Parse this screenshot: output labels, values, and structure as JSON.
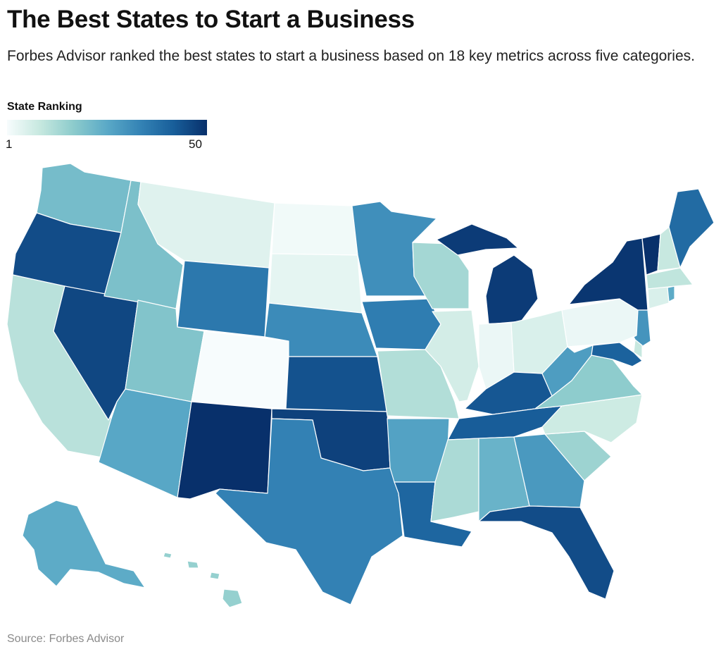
{
  "title": "The Best States to Start a Business",
  "subtitle": "Forbes Advisor ranked the best states to start a business based on 18 key metrics across five categories.",
  "legend": {
    "title": "State Ranking",
    "min_label": "1",
    "max_label": "50",
    "min_value": 1,
    "max_value": 50,
    "colors": [
      "#f7fcfd",
      "#c6e8df",
      "#8ccbcc",
      "#5aa9c7",
      "#3483b5",
      "#185e9a",
      "#08306b"
    ]
  },
  "source": "Source: Forbes Advisor",
  "map_data": {
    "type": "choropleth",
    "region": "United States",
    "states": [
      {
        "code": "WA",
        "rank": 21
      },
      {
        "code": "OR",
        "rank": 45
      },
      {
        "code": "CA",
        "rank": 11
      },
      {
        "code": "NV",
        "rank": 46
      },
      {
        "code": "ID",
        "rank": 20
      },
      {
        "code": "MT",
        "rank": 5
      },
      {
        "code": "WY",
        "rank": 36
      },
      {
        "code": "UT",
        "rank": 19
      },
      {
        "code": "AZ",
        "rank": 26
      },
      {
        "code": "CO",
        "rank": 1
      },
      {
        "code": "NM",
        "rank": 50
      },
      {
        "code": "ND",
        "rank": 2
      },
      {
        "code": "SD",
        "rank": 4
      },
      {
        "code": "NE",
        "rank": 32
      },
      {
        "code": "KS",
        "rank": 44
      },
      {
        "code": "OK",
        "rank": 47
      },
      {
        "code": "TX",
        "rank": 34
      },
      {
        "code": "MN",
        "rank": 31
      },
      {
        "code": "IA",
        "rank": 35
      },
      {
        "code": "MO",
        "rank": 12
      },
      {
        "code": "AR",
        "rank": 27
      },
      {
        "code": "LA",
        "rank": 40
      },
      {
        "code": "WI",
        "rank": 14
      },
      {
        "code": "IL",
        "rank": 7
      },
      {
        "code": "MI",
        "rank": 48
      },
      {
        "code": "IN",
        "rank": 3
      },
      {
        "code": "OH",
        "rank": 6
      },
      {
        "code": "KY",
        "rank": 43
      },
      {
        "code": "TN",
        "rank": 42
      },
      {
        "code": "MS",
        "rank": 13
      },
      {
        "code": "AL",
        "rank": 23
      },
      {
        "code": "GA",
        "rank": 29
      },
      {
        "code": "FL",
        "rank": 45
      },
      {
        "code": "SC",
        "rank": 15
      },
      {
        "code": "NC",
        "rank": 8
      },
      {
        "code": "VA",
        "rank": 17
      },
      {
        "code": "WV",
        "rank": 28
      },
      {
        "code": "PA",
        "rank": 3
      },
      {
        "code": "NY",
        "rank": 49
      },
      {
        "code": "VT",
        "rank": 50
      },
      {
        "code": "NH",
        "rank": 9
      },
      {
        "code": "ME",
        "rank": 39
      },
      {
        "code": "MA",
        "rank": 10
      },
      {
        "code": "CT",
        "rank": 6
      },
      {
        "code": "RI",
        "rank": 25
      },
      {
        "code": "NJ",
        "rank": 30
      },
      {
        "code": "DE",
        "rank": 9
      },
      {
        "code": "MD",
        "rank": 41
      },
      {
        "code": "AK",
        "rank": 25
      },
      {
        "code": "HI",
        "rank": 16
      }
    ]
  }
}
